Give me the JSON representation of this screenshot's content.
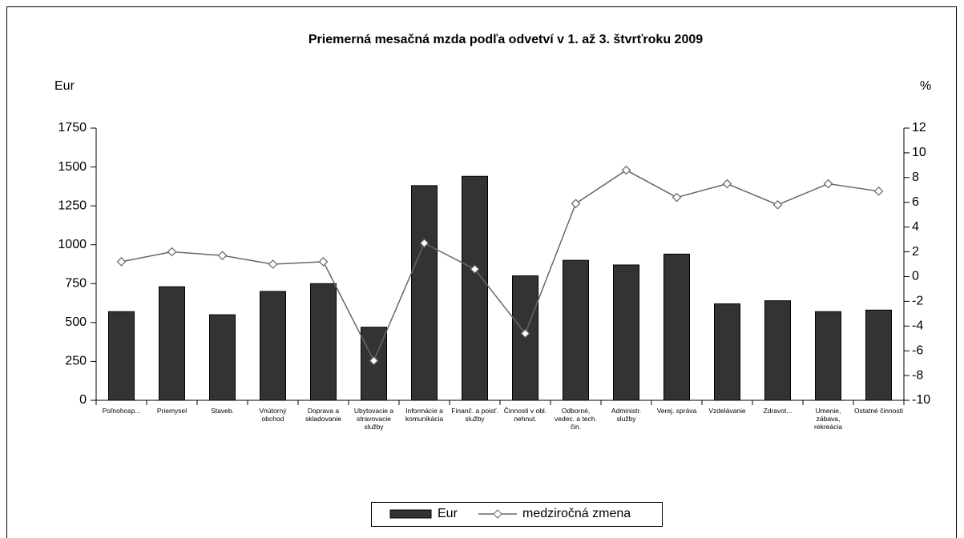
{
  "chart_data": {
    "type": "bar_line",
    "title": "Priemerná mesačná mzda podľa odvetví v 1. až 3. štvrťroku 2009",
    "y_label": "Eur",
    "y2_label": "%",
    "categories": [
      "Poľnohosp...",
      "Priemysel",
      "Staveb.",
      "Vnútorný obchod",
      "Doprava a skladovanie",
      "Ubytovacie a stravovacie služby",
      "Informácie a komunikácia",
      "Finanč. a poisť. služby",
      "Činnosti v obl. nehnut.",
      "Odborné, vedec. a tech. čin.",
      "Administr. služby",
      "Verej. správa",
      "Vzdelávanie",
      "Zdravot...",
      "Umenie, zábava, rekreácia",
      "Ostatné činnosti"
    ],
    "series": [
      {
        "name": "Eur",
        "type": "bar",
        "color": "#333333",
        "values": [
          570,
          730,
          550,
          700,
          750,
          470,
          1380,
          1440,
          800,
          900,
          870,
          940,
          620,
          640,
          570,
          580
        ]
      },
      {
        "name": "medziročná zmena",
        "type": "line",
        "axis": "y2",
        "color": "#666666",
        "values": [
          1.2,
          2.0,
          1.7,
          1.0,
          1.2,
          -6.8,
          2.7,
          0.6,
          -4.6,
          5.9,
          8.6,
          6.4,
          7.5,
          5.8,
          7.5,
          6.9
        ]
      }
    ],
    "ylim": [
      0,
      1750
    ],
    "yticks": [
      0,
      250,
      500,
      750,
      1000,
      1250,
      1500,
      1750
    ],
    "y2lim": [
      -10,
      12
    ],
    "y2ticks": [
      -10,
      -8,
      -6,
      -4,
      -2,
      0,
      2,
      4,
      6,
      8,
      10,
      12
    ],
    "legend": "bottom"
  }
}
